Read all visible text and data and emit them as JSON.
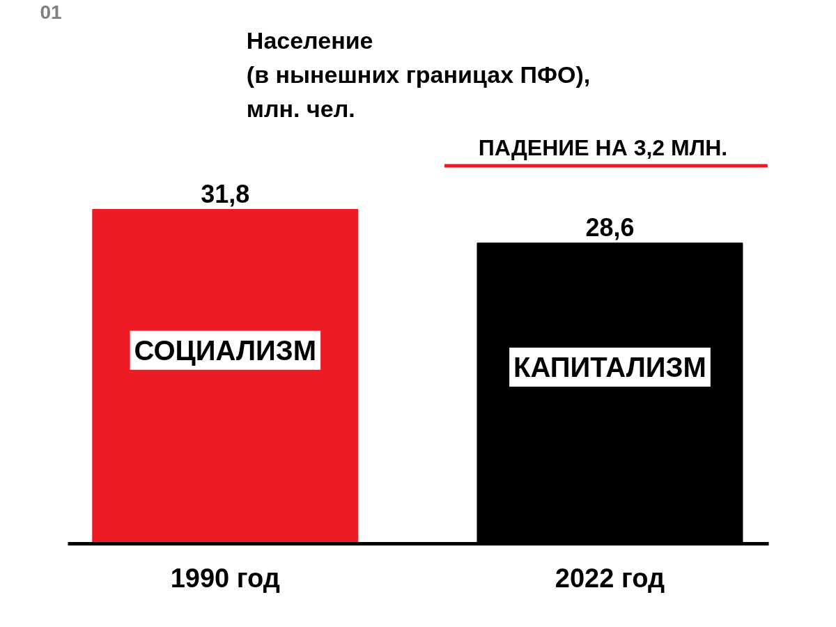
{
  "chart_data": {
    "type": "bar",
    "title": "Население\n(в нынешних границах ПФО),\nмлн. чел.",
    "categories": [
      "1990 год",
      "2022 год"
    ],
    "values": [
      31.8,
      28.6
    ],
    "colors": [
      "#ed1c24",
      "#000000"
    ],
    "value_labels": [
      "31,8",
      "28,6"
    ],
    "annotations": [
      "01",
      "ПАДЕНИЕ НА 3,2 МЛН.",
      "СОЦИАЛИЗМ",
      "КАПИТАЛИЗМ"
    ],
    "grid": false
  }
}
